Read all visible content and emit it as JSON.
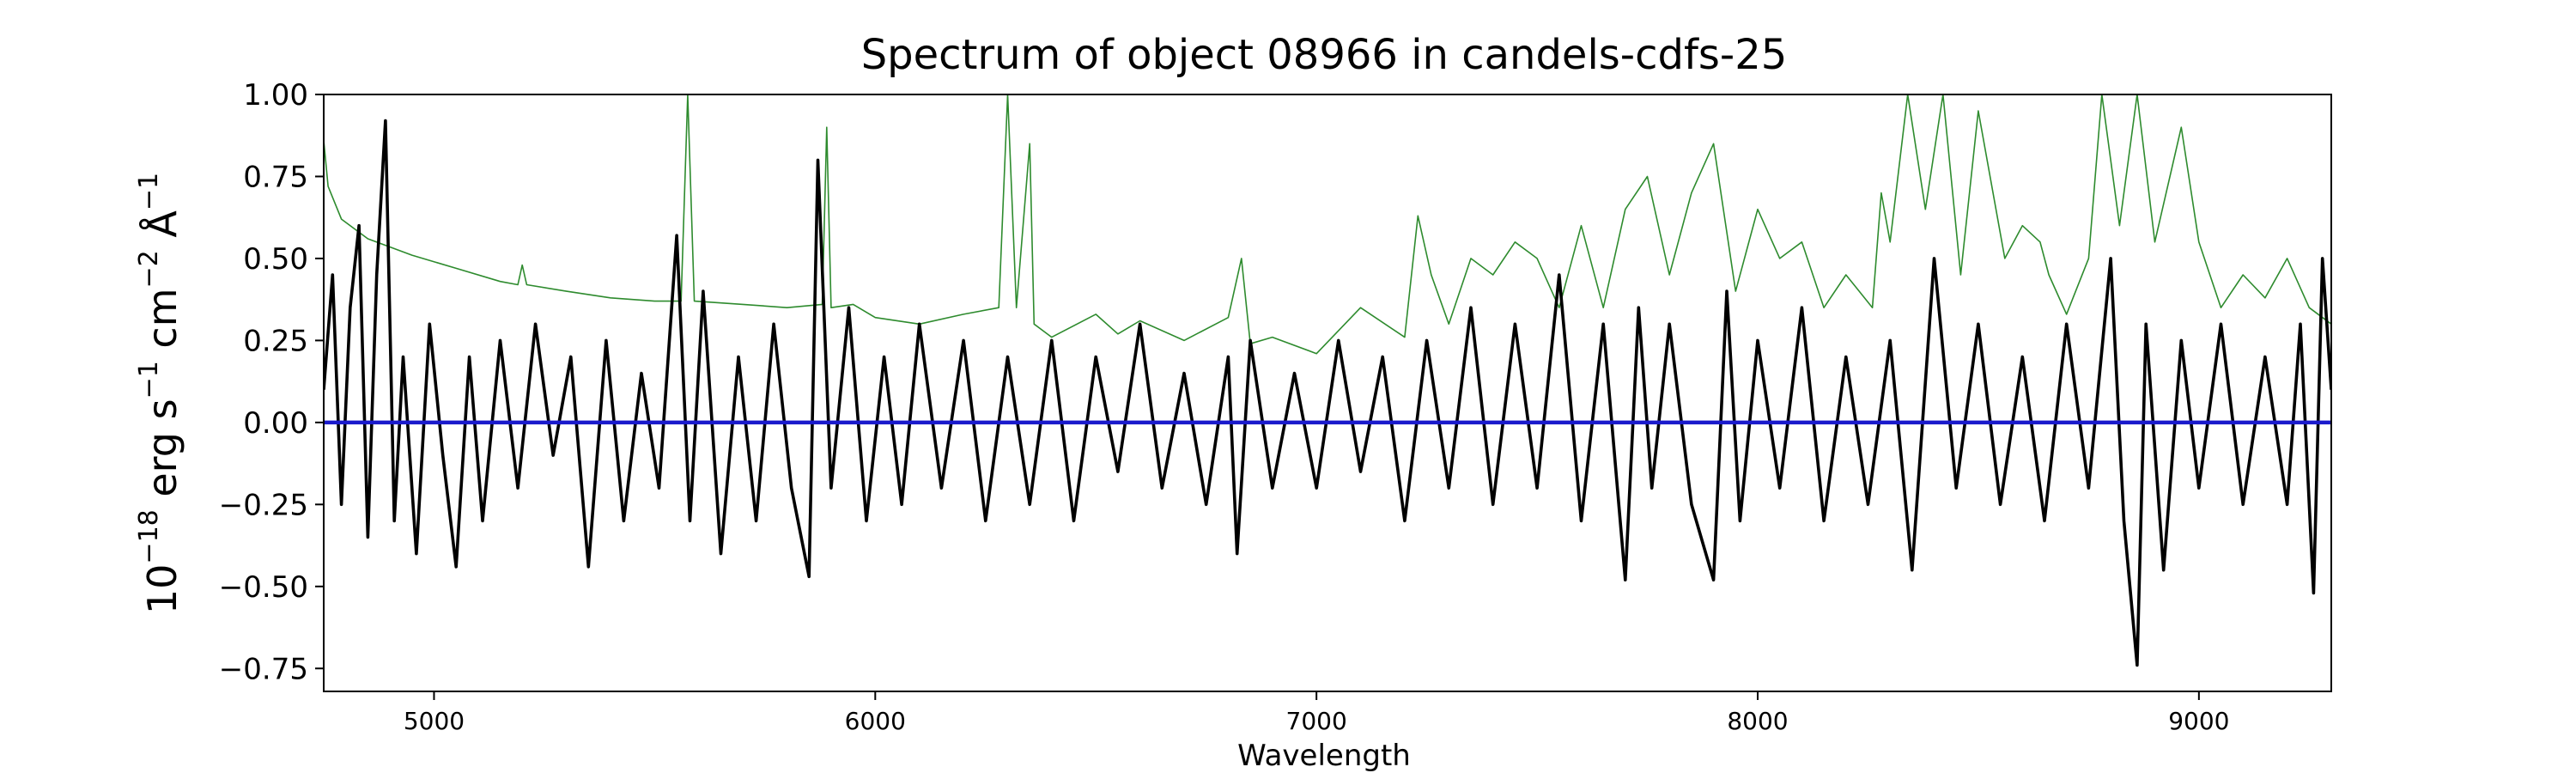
{
  "chart_data": {
    "type": "line",
    "title": "Spectrum of object 08966 in candels-cdfs-25",
    "xlabel": "Wavelength",
    "ylabel": {
      "base": "10",
      "exp1": "−18",
      "erg": " erg s",
      "exp2": "−1",
      "cm": " cm",
      "exp3": "−2",
      "ang": " Å",
      "exp4": "−1"
    },
    "xlim": [
      4750,
      9300
    ],
    "ylim": [
      -0.82,
      1.0
    ],
    "x_ticks": [
      {
        "value": 5000,
        "label": "5000"
      },
      {
        "value": 6000,
        "label": "6000"
      },
      {
        "value": 7000,
        "label": "7000"
      },
      {
        "value": 8000,
        "label": "8000"
      },
      {
        "value": 9000,
        "label": "9000"
      }
    ],
    "y_ticks": [
      {
        "value": 1.0,
        "label": "1.00"
      },
      {
        "value": 0.75,
        "label": "0.75"
      },
      {
        "value": 0.5,
        "label": "0.50"
      },
      {
        "value": 0.25,
        "label": "0.25"
      },
      {
        "value": 0.0,
        "label": "0.00"
      },
      {
        "value": -0.25,
        "label": "−0.25"
      },
      {
        "value": -0.5,
        "label": "−0.50"
      },
      {
        "value": -0.75,
        "label": "−0.75"
      }
    ],
    "grid": false,
    "series": [
      {
        "role": "model",
        "color": "#1a1acc",
        "x": [
          4750,
          9300
        ],
        "y": [
          0.0,
          0.0
        ]
      },
      {
        "role": "error",
        "color": "#2e8b2e",
        "x": [
          4750,
          4760,
          4790,
          4850,
          4950,
          5050,
          5150,
          5190,
          5200,
          5210,
          5300,
          5400,
          5500,
          5560,
          5575,
          5590,
          5700,
          5800,
          5880,
          5890,
          5900,
          5950,
          6000,
          6100,
          6200,
          6280,
          6300,
          6320,
          6350,
          6360,
          6400,
          6500,
          6550,
          6600,
          6700,
          6800,
          6830,
          6850,
          6900,
          7000,
          7100,
          7200,
          7230,
          7260,
          7300,
          7350,
          7400,
          7450,
          7500,
          7550,
          7600,
          7650,
          7700,
          7750,
          7800,
          7850,
          7900,
          7950,
          8000,
          8050,
          8100,
          8150,
          8200,
          8260,
          8280,
          8300,
          8340,
          8380,
          8420,
          8460,
          8500,
          8560,
          8600,
          8640,
          8660,
          8700,
          8750,
          8780,
          8820,
          8860,
          8900,
          8960,
          9000,
          9050,
          9100,
          9150,
          9200,
          9250,
          9300
        ],
        "y": [
          0.86,
          0.72,
          0.62,
          0.56,
          0.51,
          0.47,
          0.43,
          0.42,
          0.48,
          0.42,
          0.4,
          0.38,
          0.37,
          0.37,
          1.0,
          0.37,
          0.36,
          0.35,
          0.36,
          0.9,
          0.35,
          0.36,
          0.32,
          0.3,
          0.33,
          0.35,
          1.0,
          0.35,
          0.85,
          0.3,
          0.26,
          0.33,
          0.27,
          0.31,
          0.25,
          0.32,
          0.5,
          0.24,
          0.26,
          0.21,
          0.35,
          0.26,
          0.63,
          0.45,
          0.3,
          0.5,
          0.45,
          0.55,
          0.5,
          0.35,
          0.6,
          0.35,
          0.65,
          0.75,
          0.45,
          0.7,
          0.85,
          0.4,
          0.65,
          0.5,
          0.55,
          0.35,
          0.45,
          0.35,
          0.7,
          0.55,
          1.0,
          0.65,
          1.0,
          0.45,
          0.95,
          0.5,
          0.6,
          0.55,
          0.45,
          0.33,
          0.5,
          1.0,
          0.6,
          1.0,
          0.55,
          0.9,
          0.55,
          0.35,
          0.45,
          0.38,
          0.5,
          0.35,
          0.3
        ]
      },
      {
        "role": "flux",
        "color": "#000000",
        "x": [
          4750,
          4770,
          4790,
          4810,
          4830,
          4850,
          4870,
          4890,
          4910,
          4930,
          4960,
          4990,
          5020,
          5050,
          5080,
          5110,
          5150,
          5190,
          5230,
          5270,
          5310,
          5350,
          5390,
          5430,
          5470,
          5510,
          5550,
          5580,
          5610,
          5650,
          5690,
          5730,
          5770,
          5810,
          5850,
          5870,
          5900,
          5940,
          5980,
          6020,
          6060,
          6100,
          6150,
          6200,
          6250,
          6300,
          6350,
          6400,
          6450,
          6500,
          6550,
          6600,
          6650,
          6700,
          6750,
          6800,
          6820,
          6850,
          6900,
          6950,
          7000,
          7050,
          7100,
          7150,
          7200,
          7250,
          7300,
          7350,
          7400,
          7450,
          7500,
          7550,
          7600,
          7650,
          7700,
          7730,
          7760,
          7800,
          7850,
          7900,
          7930,
          7960,
          8000,
          8050,
          8100,
          8150,
          8200,
          8250,
          8300,
          8350,
          8400,
          8450,
          8500,
          8550,
          8600,
          8650,
          8700,
          8750,
          8800,
          8830,
          8860,
          8880,
          8920,
          8960,
          9000,
          9050,
          9100,
          9150,
          9200,
          9230,
          9260,
          9280,
          9300
        ],
        "y": [
          0.1,
          0.45,
          -0.25,
          0.35,
          0.6,
          -0.35,
          0.45,
          0.92,
          -0.3,
          0.2,
          -0.4,
          0.3,
          -0.1,
          -0.44,
          0.2,
          -0.3,
          0.25,
          -0.2,
          0.3,
          -0.1,
          0.2,
          -0.44,
          0.25,
          -0.3,
          0.15,
          -0.2,
          0.57,
          -0.3,
          0.4,
          -0.4,
          0.2,
          -0.3,
          0.3,
          -0.2,
          -0.47,
          0.8,
          -0.2,
          0.35,
          -0.3,
          0.2,
          -0.25,
          0.3,
          -0.2,
          0.25,
          -0.3,
          0.2,
          -0.25,
          0.25,
          -0.3,
          0.2,
          -0.15,
          0.3,
          -0.2,
          0.15,
          -0.25,
          0.2,
          -0.4,
          0.25,
          -0.2,
          0.15,
          -0.2,
          0.25,
          -0.15,
          0.2,
          -0.3,
          0.25,
          -0.2,
          0.35,
          -0.25,
          0.3,
          -0.2,
          0.45,
          -0.3,
          0.3,
          -0.48,
          0.35,
          -0.2,
          0.3,
          -0.25,
          -0.48,
          0.4,
          -0.3,
          0.25,
          -0.2,
          0.35,
          -0.3,
          0.2,
          -0.25,
          0.25,
          -0.45,
          0.5,
          -0.2,
          0.3,
          -0.25,
          0.2,
          -0.3,
          0.3,
          -0.2,
          0.5,
          -0.3,
          -0.74,
          0.3,
          -0.45,
          0.25,
          -0.2,
          0.3,
          -0.25,
          0.2,
          -0.25,
          0.3,
          -0.52,
          0.5,
          0.1
        ]
      }
    ]
  }
}
